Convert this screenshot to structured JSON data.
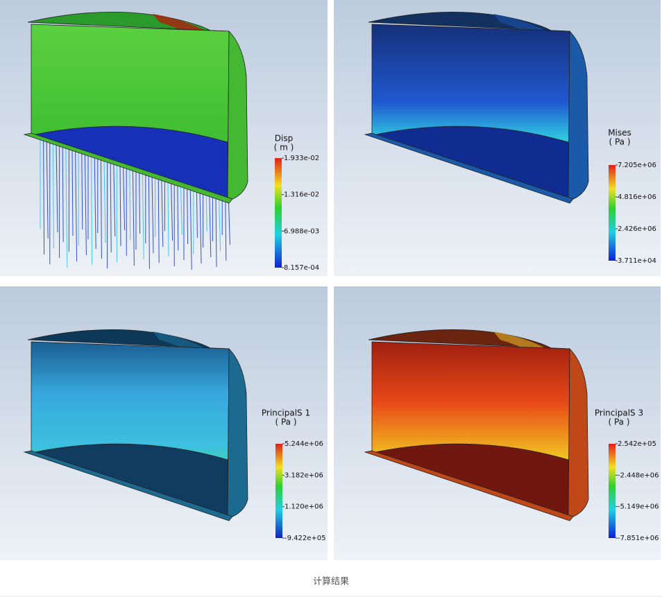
{
  "panels": [
    {
      "legend": {
        "title": "Disp",
        "unit": "( m )",
        "labels": [
          "1.933e-02",
          "1.316e-02",
          "6.988e-03",
          "8.157e-04"
        ]
      }
    },
    {
      "legend": {
        "title": "Mises",
        "unit": "( Pa )",
        "labels": [
          "7.205e+06",
          "4.816e+06",
          "2.426e+06",
          "3.711e+04"
        ]
      }
    },
    {
      "legend": {
        "title": "PrincipalS 1",
        "unit": "( Pa )",
        "labels": [
          "5.244e+06",
          "3.182e+06",
          "1.120e+06",
          "-9.422e+05"
        ]
      }
    },
    {
      "legend": {
        "title": "PrincipalS 3",
        "unit": "( Pa )",
        "labels": [
          "2.542e+05",
          "-2.448e+06",
          "-5.149e+06",
          "-7.851e+06"
        ]
      }
    }
  ],
  "caption": "计算结果"
}
